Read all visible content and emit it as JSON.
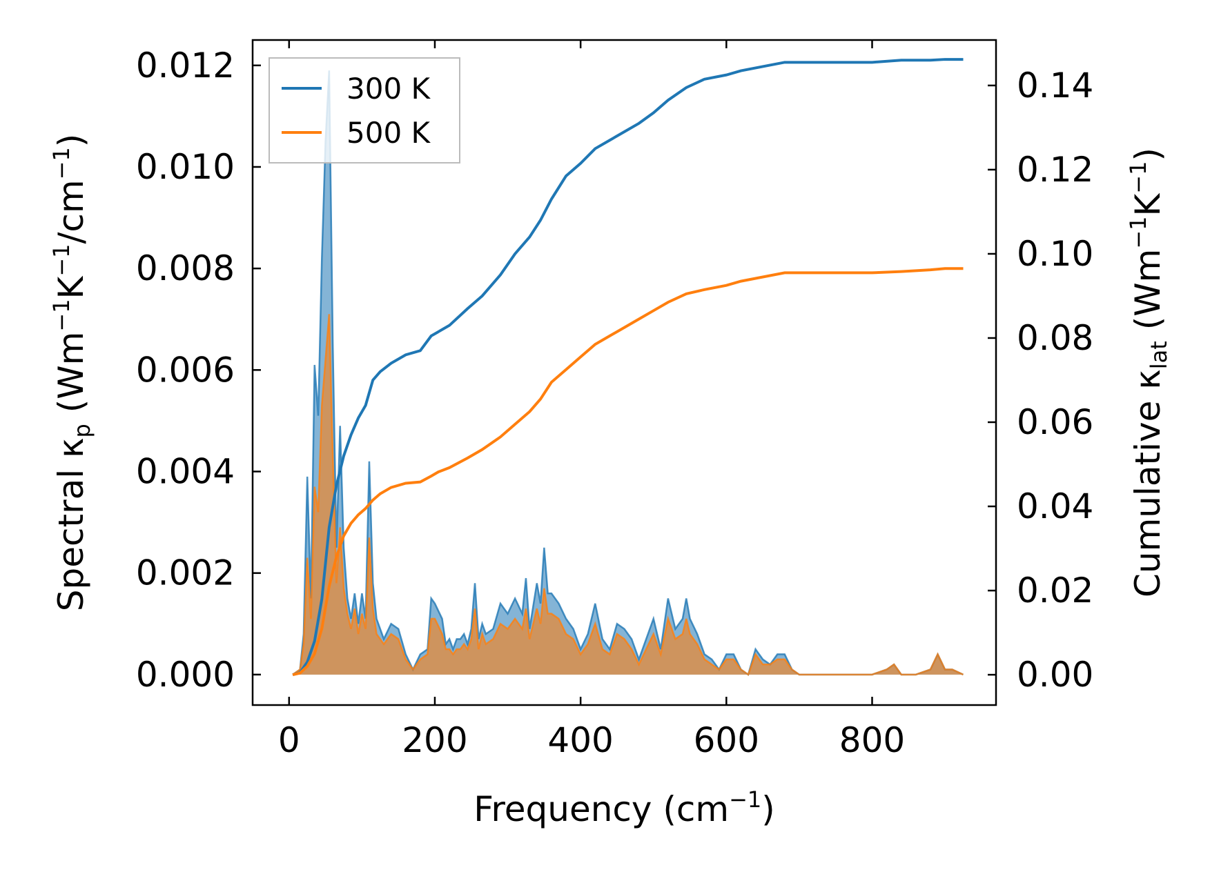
{
  "chart_data": {
    "type": "area",
    "xlabel": {
      "main": "Frequency (cm",
      "sup": "−1",
      "end": ")"
    },
    "ylabel_left": {
      "main": "Spectral κ",
      "sub": "p",
      "rest1": " (Wm",
      "sup1": "−1",
      "rest2": "K",
      "sup2": "−1",
      "rest3": "/cm",
      "sup3": "−1",
      "end": ")"
    },
    "ylabel_right": {
      "main": "Cumulative κ",
      "sub": "lat",
      "rest1": " (Wm",
      "sup1": "−1",
      "rest2": "K",
      "sup2": "−1",
      "end": ")"
    },
    "xlim": [
      -50,
      970
    ],
    "ylim_left": [
      -0.0006,
      0.0125
    ],
    "ylim_right": [
      -0.0072,
      0.1508
    ],
    "xticks": [
      0,
      200,
      400,
      600,
      800
    ],
    "xtick_labels": [
      "0",
      "200",
      "400",
      "600",
      "800"
    ],
    "yticks_left": [
      0,
      0.002,
      0.004,
      0.006,
      0.008,
      0.01,
      0.012
    ],
    "ytick_labels_left": [
      "0.000",
      "0.002",
      "0.004",
      "0.006",
      "0.008",
      "0.010",
      "0.012"
    ],
    "yticks_right": [
      0,
      0.02,
      0.04,
      0.06,
      0.08,
      0.1,
      0.12,
      0.14
    ],
    "ytick_labels_right": [
      "0.00",
      "0.02",
      "0.04",
      "0.06",
      "0.08",
      "0.10",
      "0.12",
      "0.14"
    ],
    "legend_position": "top-left",
    "grid": false,
    "series": [
      {
        "name": "300 K",
        "color": "#1f77b4",
        "spectral": {
          "x": [
            5,
            15,
            20,
            25,
            30,
            35,
            40,
            45,
            50,
            55,
            60,
            65,
            70,
            75,
            80,
            85,
            90,
            95,
            100,
            105,
            110,
            115,
            120,
            130,
            140,
            150,
            160,
            170,
            180,
            190,
            195,
            200,
            210,
            215,
            220,
            225,
            230,
            235,
            240,
            245,
            250,
            255,
            260,
            265,
            270,
            280,
            290,
            300,
            310,
            320,
            325,
            330,
            340,
            345,
            350,
            355,
            360,
            370,
            380,
            390,
            400,
            410,
            420,
            430,
            440,
            450,
            460,
            470,
            480,
            490,
            500,
            510,
            520,
            530,
            540,
            545,
            550,
            560,
            570,
            580,
            590,
            600,
            610,
            620,
            630,
            640,
            650,
            660,
            670,
            680,
            690,
            700,
            710,
            720,
            800,
            820,
            830,
            840,
            860,
            880,
            890,
            900,
            910,
            925
          ],
          "y": [
            0,
            0.0001,
            0.0008,
            0.0039,
            0.0015,
            0.0061,
            0.0051,
            0.0082,
            0.0105,
            0.0119,
            0.0065,
            0.0025,
            0.0049,
            0.0025,
            0.0015,
            0.0011,
            0.0016,
            0.001,
            0.0016,
            0.0011,
            0.0042,
            0.0018,
            0.0011,
            0.0007,
            0.001,
            0.0009,
            0.0004,
            0.0001,
            0.0004,
            0.0005,
            0.0015,
            0.0014,
            0.0011,
            0.0006,
            0.0007,
            0.0005,
            0.0007,
            0.0007,
            0.0008,
            0.0006,
            0.0009,
            0.0018,
            0.0007,
            0.001,
            0.0008,
            0.0009,
            0.0014,
            0.0012,
            0.0015,
            0.0012,
            0.0019,
            0.0009,
            0.0018,
            0.0014,
            0.0025,
            0.0016,
            0.0016,
            0.0014,
            0.0011,
            0.0009,
            0.0005,
            0.0008,
            0.0014,
            0.0007,
            0.0005,
            0.001,
            0.0009,
            0.0007,
            0.0003,
            0.0007,
            0.0011,
            0.0005,
            0.0015,
            0.0009,
            0.0011,
            0.0015,
            0.0011,
            0.0008,
            0.0004,
            0.0003,
            0.0001,
            0.0004,
            0.0004,
            0.0001,
            0.0,
            0.0005,
            0.0003,
            0.0002,
            0.0004,
            0.0004,
            0.0001,
            0.0,
            0,
            0,
            0,
            0.0001,
            0.0002,
            0,
            0,
            0.0001,
            0.0004,
            0.0001,
            0.0001,
            0
          ],
          "y_upper": [
            0,
            0.0001,
            0.0008,
            0.0039,
            0.0015,
            0.0061,
            0.0051,
            0.0082,
            0.0105,
            0.0119,
            0.0065,
            0.0025,
            0.0049,
            0.0025,
            0.0015,
            0.0011,
            0.0016,
            0.001,
            0.0016,
            0.0011,
            0.0042,
            0.0018,
            0.0011,
            0.0007,
            0.001,
            0.0009,
            0.0004,
            0.0001,
            0.0004,
            0.0005,
            0.0015,
            0.0014,
            0.0011,
            0.0006,
            0.0007,
            0.0005,
            0.0007,
            0.0007,
            0.0008,
            0.0006,
            0.0009,
            0.0018,
            0.0007,
            0.001,
            0.0008,
            0.0009,
            0.0014,
            0.0012,
            0.0015,
            0.0012,
            0.0019,
            0.0009,
            0.0018,
            0.0014,
            0.0025,
            0.0016,
            0.0016,
            0.0014,
            0.0011,
            0.0009,
            0.0005,
            0.0008,
            0.0014,
            0.0007,
            0.0005,
            0.001,
            0.0009,
            0.0007,
            0.0003,
            0.0007,
            0.0011,
            0.0005,
            0.0015,
            0.0009,
            0.0011,
            0.0015,
            0.0011,
            0.0008,
            0.0004,
            0.0003,
            0.0001,
            0.0004,
            0.0004,
            0.0001,
            0.0,
            0.0005,
            0.0003,
            0.0002,
            0.0004,
            0.0004,
            0.0001,
            0.0,
            0,
            0,
            0,
            0.0001,
            0.0002,
            0,
            0,
            0.0001,
            0.0004,
            0.0001,
            0.0001,
            0
          ]
        },
        "cumulative": {
          "x": [
            5,
            15,
            25,
            35,
            45,
            55,
            65,
            75,
            85,
            95,
            105,
            115,
            125,
            140,
            160,
            180,
            195,
            205,
            220,
            245,
            265,
            290,
            310,
            330,
            345,
            360,
            380,
            400,
            420,
            440,
            460,
            480,
            500,
            520,
            545,
            570,
            600,
            620,
            650,
            680,
            700,
            750,
            800,
            840,
            880,
            900,
            925
          ],
          "y": [
            0,
            0.0005,
            0.003,
            0.008,
            0.018,
            0.035,
            0.045,
            0.052,
            0.057,
            0.061,
            0.064,
            0.07,
            0.072,
            0.074,
            0.076,
            0.077,
            0.0805,
            0.0815,
            0.083,
            0.087,
            0.09,
            0.095,
            0.1,
            0.104,
            0.108,
            0.113,
            0.1185,
            0.1215,
            0.125,
            0.127,
            0.129,
            0.131,
            0.1335,
            0.1365,
            0.1395,
            0.1415,
            0.1425,
            0.1435,
            0.1445,
            0.1455,
            0.1455,
            0.1455,
            0.1455,
            0.146,
            0.146,
            0.1462,
            0.1462
          ]
        }
      },
      {
        "name": "500 K",
        "color": "#ff7f0e",
        "spectral": {
          "x": [
            5,
            15,
            20,
            25,
            30,
            35,
            40,
            45,
            50,
            55,
            60,
            65,
            70,
            75,
            80,
            85,
            90,
            95,
            100,
            105,
            110,
            115,
            120,
            130,
            140,
            150,
            160,
            170,
            180,
            190,
            195,
            200,
            210,
            215,
            220,
            225,
            230,
            235,
            240,
            245,
            250,
            255,
            260,
            265,
            270,
            280,
            290,
            300,
            310,
            320,
            325,
            330,
            340,
            345,
            350,
            355,
            360,
            370,
            380,
            390,
            400,
            410,
            420,
            430,
            440,
            450,
            460,
            470,
            480,
            490,
            500,
            510,
            520,
            530,
            540,
            545,
            550,
            560,
            570,
            580,
            590,
            600,
            610,
            620,
            630,
            640,
            650,
            660,
            670,
            680,
            690,
            700,
            710,
            720,
            800,
            820,
            830,
            840,
            860,
            880,
            890,
            900,
            910,
            925
          ],
          "y": [
            0,
            0.0001,
            0.0006,
            0.0023,
            0.0011,
            0.0037,
            0.0032,
            0.0053,
            0.0062,
            0.0071,
            0.0043,
            0.0018,
            0.0029,
            0.0017,
            0.0012,
            0.0009,
            0.0013,
            0.0008,
            0.0012,
            0.0009,
            0.0027,
            0.0013,
            0.0008,
            0.0006,
            0.0008,
            0.0007,
            0.0003,
            0.0001,
            0.0003,
            0.0004,
            0.0011,
            0.0011,
            0.0008,
            0.0005,
            0.0005,
            0.0004,
            0.0005,
            0.0005,
            0.0006,
            0.0005,
            0.0007,
            0.0013,
            0.0005,
            0.0008,
            0.0006,
            0.0007,
            0.001,
            0.0009,
            0.0011,
            0.0009,
            0.0013,
            0.0007,
            0.0013,
            0.001,
            0.0017,
            0.0012,
            0.0012,
            0.0011,
            0.0008,
            0.0007,
            0.0004,
            0.0006,
            0.001,
            0.0005,
            0.0004,
            0.0008,
            0.0007,
            0.0005,
            0.0002,
            0.0005,
            0.0008,
            0.0004,
            0.0011,
            0.0007,
            0.0008,
            0.0011,
            0.0008,
            0.0006,
            0.0003,
            0.0002,
            0.0001,
            0.0003,
            0.0003,
            0.0001,
            0.0,
            0.0004,
            0.0002,
            0.0002,
            0.0003,
            0.0003,
            0.0001,
            0.0,
            0,
            0,
            0,
            0.0001,
            0.0002,
            0,
            0,
            0.0001,
            0.0004,
            0.0001,
            0.0001,
            0
          ],
          "y_upper": [
            0,
            0.0001,
            0.0006,
            0.0023,
            0.0011,
            0.0037,
            0.0032,
            0.0053,
            0.0062,
            0.0071,
            0.0043,
            0.0018,
            0.0029,
            0.0017,
            0.0012,
            0.0009,
            0.0013,
            0.0008,
            0.0012,
            0.0009,
            0.0027,
            0.0013,
            0.0008,
            0.0006,
            0.0008,
            0.0007,
            0.0003,
            0.0001,
            0.0003,
            0.0004,
            0.0011,
            0.0011,
            0.0008,
            0.0005,
            0.0005,
            0.0004,
            0.0005,
            0.0005,
            0.0006,
            0.0005,
            0.0007,
            0.0013,
            0.0005,
            0.0008,
            0.0006,
            0.0007,
            0.001,
            0.0009,
            0.0011,
            0.0009,
            0.0013,
            0.0007,
            0.0013,
            0.001,
            0.0017,
            0.0012,
            0.0012,
            0.0011,
            0.0008,
            0.0007,
            0.0004,
            0.0006,
            0.001,
            0.0005,
            0.0004,
            0.0008,
            0.0007,
            0.0005,
            0.0002,
            0.0005,
            0.0008,
            0.0004,
            0.0011,
            0.0007,
            0.0008,
            0.0011,
            0.0008,
            0.0006,
            0.0003,
            0.0002,
            0.0001,
            0.0003,
            0.0003,
            0.0001,
            0.0,
            0.0004,
            0.0002,
            0.0002,
            0.0003,
            0.0003,
            0.0001,
            0.0,
            0,
            0,
            0,
            0.0001,
            0.0002,
            0,
            0,
            0.0001,
            0.0004,
            0.0001,
            0.0001,
            0
          ]
        },
        "cumulative": {
          "x": [
            5,
            15,
            25,
            35,
            45,
            55,
            65,
            75,
            85,
            95,
            105,
            115,
            125,
            140,
            160,
            180,
            195,
            205,
            220,
            245,
            265,
            290,
            310,
            330,
            345,
            360,
            380,
            400,
            420,
            440,
            460,
            480,
            500,
            520,
            545,
            570,
            600,
            620,
            650,
            680,
            700,
            750,
            800,
            840,
            880,
            900,
            925
          ],
          "y": [
            0,
            0.0004,
            0.002,
            0.005,
            0.011,
            0.021,
            0.028,
            0.033,
            0.036,
            0.038,
            0.0395,
            0.0415,
            0.043,
            0.0445,
            0.0455,
            0.0458,
            0.0472,
            0.0482,
            0.0492,
            0.0515,
            0.0535,
            0.0565,
            0.0595,
            0.0625,
            0.0655,
            0.0695,
            0.0725,
            0.0755,
            0.0785,
            0.0805,
            0.0825,
            0.0845,
            0.0865,
            0.0885,
            0.0905,
            0.0915,
            0.0925,
            0.0935,
            0.0945,
            0.0955,
            0.0955,
            0.0955,
            0.0955,
            0.0958,
            0.0962,
            0.0965,
            0.0965
          ]
        }
      }
    ]
  }
}
